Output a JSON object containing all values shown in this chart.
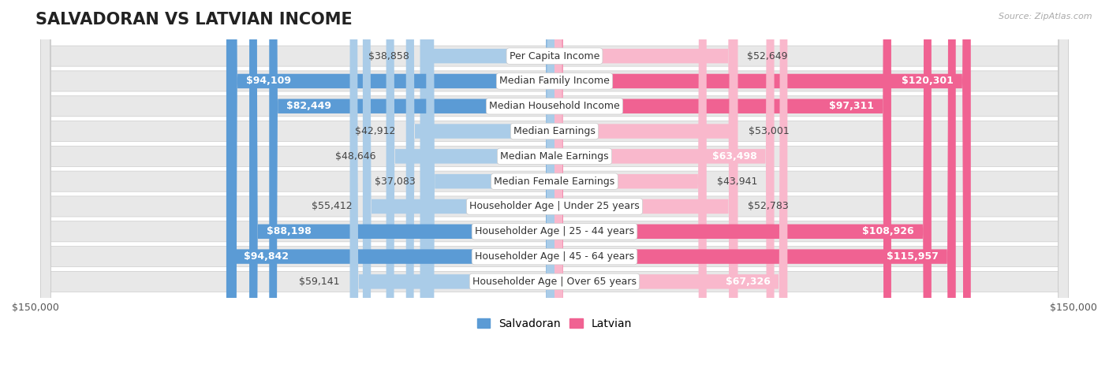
{
  "title": "SALVADORAN VS LATVIAN INCOME",
  "source": "Source: ZipAtlas.com",
  "categories": [
    "Per Capita Income",
    "Median Family Income",
    "Median Household Income",
    "Median Earnings",
    "Median Male Earnings",
    "Median Female Earnings",
    "Householder Age | Under 25 years",
    "Householder Age | 25 - 44 years",
    "Householder Age | 45 - 64 years",
    "Householder Age | Over 65 years"
  ],
  "salvadoran": [
    38858,
    94109,
    82449,
    42912,
    48646,
    37083,
    55412,
    88198,
    94842,
    59141
  ],
  "latvian": [
    52649,
    120301,
    97311,
    53001,
    63498,
    43941,
    52783,
    108926,
    115957,
    67326
  ],
  "salvadoran_labels": [
    "$38,858",
    "$94,109",
    "$82,449",
    "$42,912",
    "$48,646",
    "$37,083",
    "$55,412",
    "$88,198",
    "$94,842",
    "$59,141"
  ],
  "latvian_labels": [
    "$52,649",
    "$120,301",
    "$97,311",
    "$53,001",
    "$63,498",
    "$43,941",
    "$52,783",
    "$108,926",
    "$115,957",
    "$67,326"
  ],
  "salvadoran_color_light": "#aacce8",
  "salvadoran_color_dark": "#5b9bd5",
  "latvian_color_light": "#f9b8cc",
  "latvian_color_dark": "#f06292",
  "max_value": 150000,
  "background_color": "#ffffff",
  "row_bg_color": "#e8e8e8",
  "bar_height": 0.58,
  "title_fontsize": 15,
  "label_fontsize": 9,
  "cat_fontsize": 9,
  "axis_label_fontsize": 9,
  "legend_fontsize": 10,
  "inside_threshold": 60000,
  "dark_threshold": 80000
}
